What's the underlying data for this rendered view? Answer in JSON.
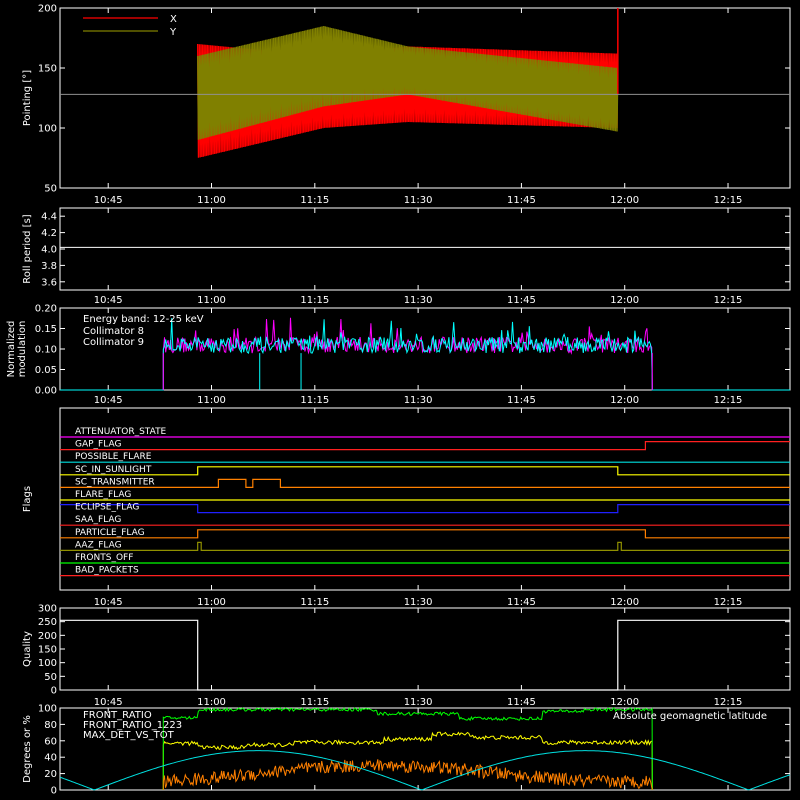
{
  "time_axis": {
    "start": "10:38",
    "end": "12:24",
    "ticks": [
      "10:45",
      "11:00",
      "11:15",
      "11:30",
      "11:45",
      "12:00",
      "12:15"
    ]
  },
  "chart_data": [
    {
      "id": "pointing",
      "type": "line",
      "ylabel": "Pointing [°]",
      "ylim": [
        50,
        200
      ],
      "yticks": [
        50,
        100,
        150,
        200
      ],
      "reference_line": 128,
      "series": [
        {
          "name": "X",
          "color": "#ff0000",
          "start": "10:58",
          "end": "11:59",
          "envelope_upper": [
            [
              0,
              170
            ],
            [
              30,
              160
            ],
            [
              50,
              168
            ],
            [
              100,
              162
            ]
          ],
          "envelope_lower": [
            [
              0,
              75
            ],
            [
              30,
              100
            ],
            [
              50,
              105
            ],
            [
              100,
              100
            ]
          ]
        },
        {
          "name": "Y",
          "color": "#808000",
          "start": "10:58",
          "end": "11:59",
          "envelope_upper": [
            [
              0,
              160
            ],
            [
              30,
              185
            ],
            [
              50,
              168
            ],
            [
              100,
              150
            ]
          ],
          "envelope_lower": [
            [
              0,
              90
            ],
            [
              30,
              118
            ],
            [
              50,
              128
            ],
            [
              100,
              97
            ]
          ]
        }
      ]
    },
    {
      "id": "roll_period",
      "type": "line",
      "ylabel": "Roll period [s]",
      "ylim": [
        3.5,
        4.5
      ],
      "yticks": [
        3.6,
        3.8,
        4.0,
        4.2,
        4.4
      ],
      "series": [
        {
          "name": "Roll period",
          "color": "#ffffff",
          "value": 4.02
        }
      ]
    },
    {
      "id": "modulation",
      "type": "line",
      "ylabel": "Normalized modulation",
      "ylim": [
        0,
        0.2
      ],
      "yticks": [
        "0.00",
        "0.05",
        "0.10",
        "0.15",
        "0.20"
      ],
      "annotation": "Energy band: 12-25 keV",
      "series": [
        {
          "name": "Collimator 8",
          "color": "#00ffff",
          "start": "10:53",
          "end": "12:04",
          "mean": 0.11,
          "spread": 0.02
        },
        {
          "name": "Collimator 9",
          "color": "#ff00ff",
          "start": "10:53",
          "end": "12:04",
          "mean": 0.11,
          "spread": 0.02
        }
      ]
    },
    {
      "id": "flags",
      "type": "step",
      "ylabel": "Flags",
      "flags": [
        {
          "name": "ATTENUATOR_STATE",
          "color": "#ff00ff",
          "steps": []
        },
        {
          "name": "GAP_FLAG",
          "color": "#ff2020",
          "steps": [
            [
              "12:03",
              "12:24"
            ]
          ]
        },
        {
          "name": "POSSIBLE_FLARE",
          "color": "#00e0e0",
          "steps": []
        },
        {
          "name": "SC_IN_SUNLIGHT",
          "color": "#ffff00",
          "steps": [
            [
              "10:58",
              "11:59"
            ]
          ]
        },
        {
          "name": "SC_TRANSMITTER",
          "color": "#ff8000",
          "steps": [
            [
              "11:01",
              "11:05"
            ],
            [
              "11:06",
              "11:10"
            ]
          ]
        },
        {
          "name": "FLARE_FLAG",
          "color": "#ffff00",
          "steps": []
        },
        {
          "name": "ECLIPSE_FLAG",
          "color": "#2020ff",
          "steps": [
            [
              "10:38",
              "10:58"
            ],
            [
              "11:59",
              "12:24"
            ]
          ]
        },
        {
          "name": "SAA_FLAG",
          "color": "#ff2020",
          "steps": []
        },
        {
          "name": "PARTICLE_FLAG",
          "color": "#ff8000",
          "steps": [
            [
              "10:58",
              "12:03"
            ]
          ]
        },
        {
          "name": "AAZ_FLAG",
          "color": "#909000",
          "steps": [
            [
              "10:58",
              "10:58.5"
            ],
            [
              "11:59",
              "11:59.5"
            ]
          ]
        },
        {
          "name": "FRONTS_OFF",
          "color": "#00ff00",
          "steps": []
        },
        {
          "name": "BAD_PACKETS",
          "color": "#ff2020",
          "steps": []
        }
      ]
    },
    {
      "id": "quality",
      "type": "step",
      "ylabel": "Quality",
      "ylim": [
        0,
        300
      ],
      "yticks": [
        0,
        50,
        100,
        150,
        200,
        250,
        300
      ],
      "series": [
        {
          "name": "Quality",
          "color": "#ffffff",
          "segments": [
            [
              "10:38",
              "10:58",
              255
            ],
            [
              "10:58",
              "11:59",
              0
            ],
            [
              "11:59",
              "12:24",
              255
            ]
          ]
        }
      ]
    },
    {
      "id": "ratios",
      "type": "line",
      "ylabel": "Degrees or %",
      "ylim": [
        0,
        100
      ],
      "yticks": [
        0,
        20,
        40,
        60,
        80,
        100
      ],
      "series": [
        {
          "name": "FRONT_RATIO",
          "color": "#ffff00",
          "start": "10:53",
          "end": "12:04"
        },
        {
          "name": "FRONT_RATIO_1223",
          "color": "#00ff00",
          "start": "10:53",
          "end": "12:04"
        },
        {
          "name": "MAX_DET_VS_TOT",
          "color": "#ff8000",
          "start": "10:53",
          "end": "12:04"
        },
        {
          "name": "Absolute geomagnetic latitude",
          "color": "#00e0e0",
          "start": "10:38",
          "end": "12:24"
        }
      ]
    }
  ]
}
